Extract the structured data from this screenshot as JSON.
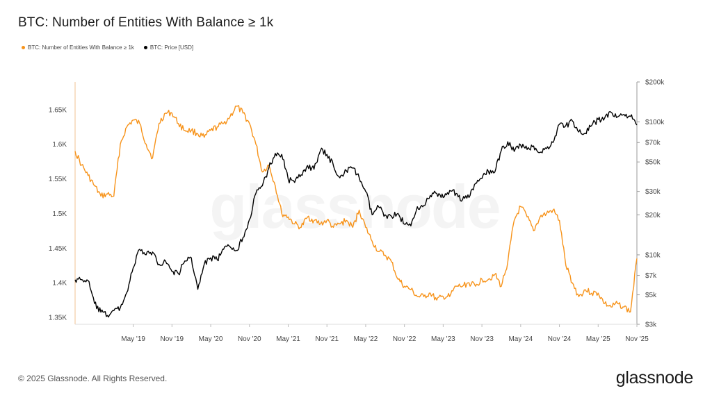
{
  "title": "BTC: Number of Entities With Balance ≥ 1k",
  "copyright": "© 2025 Glassnode. All Rights Reserved.",
  "logo_text": "glassnode",
  "watermark_text": "glassnode",
  "chart_data": {
    "type": "line",
    "title": "BTC: Number of Entities With Balance ≥ 1k",
    "x_ticks": [
      "May '19",
      "Nov '19",
      "May '20",
      "Nov '20",
      "May '21",
      "Nov '21",
      "May '22",
      "Nov '22",
      "May '23",
      "Nov '23",
      "May '24",
      "Nov '24",
      "May '25",
      "Nov '25"
    ],
    "x_range": [
      "2018-08",
      "2025-11"
    ],
    "y_left": {
      "ticks": [
        "1.35K",
        "1.4K",
        "1.45K",
        "1.5K",
        "1.55K",
        "1.6K",
        "1.65K"
      ],
      "tick_values": [
        1350,
        1400,
        1450,
        1500,
        1550,
        1600,
        1650
      ],
      "range": [
        1340,
        1690
      ]
    },
    "y_right": {
      "scale": "log",
      "ticks": [
        "$3k",
        "$5k",
        "$7k",
        "$10k",
        "$20k",
        "$30k",
        "$50k",
        "$70k",
        "$100k",
        "$200k"
      ],
      "tick_values": [
        3000,
        5000,
        7000,
        10000,
        20000,
        30000,
        50000,
        70000,
        100000,
        200000
      ],
      "range": [
        3000,
        200000
      ]
    },
    "grid": false,
    "legend_position": "top-left",
    "series": [
      {
        "name": "BTC: Number of Entities With Balance ≥ 1k",
        "axis": "left",
        "color": "#f7931a",
        "points": [
          [
            "2018-08",
            1590
          ],
          [
            "2018-09",
            1570
          ],
          [
            "2018-10",
            1555
          ],
          [
            "2018-11",
            1540
          ],
          [
            "2018-12",
            1525
          ],
          [
            "2019-01",
            1528
          ],
          [
            "2019-02",
            1525
          ],
          [
            "2019-03",
            1600
          ],
          [
            "2019-04",
            1625
          ],
          [
            "2019-05",
            1635
          ],
          [
            "2019-06",
            1630
          ],
          [
            "2019-07",
            1600
          ],
          [
            "2019-08",
            1580
          ],
          [
            "2019-09",
            1630
          ],
          [
            "2019-10",
            1645
          ],
          [
            "2019-11",
            1645
          ],
          [
            "2019-12",
            1630
          ],
          [
            "2020-01",
            1620
          ],
          [
            "2020-02",
            1620
          ],
          [
            "2020-03",
            1615
          ],
          [
            "2020-04",
            1610
          ],
          [
            "2020-05",
            1620
          ],
          [
            "2020-06",
            1625
          ],
          [
            "2020-07",
            1630
          ],
          [
            "2020-08",
            1640
          ],
          [
            "2020-09",
            1655
          ],
          [
            "2020-10",
            1645
          ],
          [
            "2020-11",
            1630
          ],
          [
            "2020-12",
            1600
          ],
          [
            "2021-01",
            1560
          ],
          [
            "2021-02",
            1570
          ],
          [
            "2021-03",
            1540
          ],
          [
            "2021-04",
            1500
          ],
          [
            "2021-05",
            1495
          ],
          [
            "2021-06",
            1485
          ],
          [
            "2021-07",
            1480
          ],
          [
            "2021-08",
            1495
          ],
          [
            "2021-09",
            1490
          ],
          [
            "2021-10",
            1485
          ],
          [
            "2021-11",
            1490
          ],
          [
            "2021-12",
            1480
          ],
          [
            "2022-01",
            1485
          ],
          [
            "2022-02",
            1490
          ],
          [
            "2022-03",
            1480
          ],
          [
            "2022-04",
            1505
          ],
          [
            "2022-05",
            1480
          ],
          [
            "2022-06",
            1460
          ],
          [
            "2022-07",
            1445
          ],
          [
            "2022-08",
            1440
          ],
          [
            "2022-09",
            1430
          ],
          [
            "2022-10",
            1405
          ],
          [
            "2022-11",
            1395
          ],
          [
            "2022-12",
            1390
          ],
          [
            "2023-01",
            1380
          ],
          [
            "2023-02",
            1380
          ],
          [
            "2023-03",
            1385
          ],
          [
            "2023-04",
            1375
          ],
          [
            "2023-05",
            1380
          ],
          [
            "2023-06",
            1380
          ],
          [
            "2023-07",
            1395
          ],
          [
            "2023-08",
            1395
          ],
          [
            "2023-09",
            1400
          ],
          [
            "2023-10",
            1395
          ],
          [
            "2023-11",
            1405
          ],
          [
            "2023-12",
            1405
          ],
          [
            "2024-01",
            1412
          ],
          [
            "2024-02",
            1395
          ],
          [
            "2024-03",
            1430
          ],
          [
            "2024-04",
            1490
          ],
          [
            "2024-05",
            1510
          ],
          [
            "2024-06",
            1495
          ],
          [
            "2024-07",
            1475
          ],
          [
            "2024-08",
            1495
          ],
          [
            "2024-09",
            1500
          ],
          [
            "2024-10",
            1505
          ],
          [
            "2024-11",
            1490
          ],
          [
            "2024-12",
            1425
          ],
          [
            "2025-01",
            1400
          ],
          [
            "2025-02",
            1380
          ],
          [
            "2025-03",
            1390
          ],
          [
            "2025-04",
            1385
          ],
          [
            "2025-05",
            1385
          ],
          [
            "2025-06",
            1370
          ],
          [
            "2025-07",
            1365
          ],
          [
            "2025-08",
            1370
          ],
          [
            "2025-09",
            1365
          ],
          [
            "2025-10",
            1358
          ],
          [
            "2025-11",
            1435
          ]
        ]
      },
      {
        "name": "BTC: Price [USD]",
        "axis": "right",
        "color": "#000000",
        "points": [
          [
            "2018-08",
            6500
          ],
          [
            "2018-09",
            6500
          ],
          [
            "2018-10",
            6400
          ],
          [
            "2018-11",
            4300
          ],
          [
            "2018-12",
            3700
          ],
          [
            "2019-01",
            3500
          ],
          [
            "2019-02",
            3800
          ],
          [
            "2019-03",
            4000
          ],
          [
            "2019-04",
            5200
          ],
          [
            "2019-05",
            8000
          ],
          [
            "2019-06",
            11000
          ],
          [
            "2019-07",
            10000
          ],
          [
            "2019-08",
            10500
          ],
          [
            "2019-09",
            8500
          ],
          [
            "2019-10",
            9000
          ],
          [
            "2019-11",
            7500
          ],
          [
            "2019-12",
            7200
          ],
          [
            "2020-01",
            9000
          ],
          [
            "2020-02",
            9500
          ],
          [
            "2020-03",
            5500
          ],
          [
            "2020-04",
            8500
          ],
          [
            "2020-05",
            9500
          ],
          [
            "2020-06",
            9200
          ],
          [
            "2020-07",
            11000
          ],
          [
            "2020-08",
            11500
          ],
          [
            "2020-09",
            10800
          ],
          [
            "2020-10",
            13500
          ],
          [
            "2020-11",
            18500
          ],
          [
            "2020-12",
            29000
          ],
          [
            "2021-01",
            33000
          ],
          [
            "2021-02",
            45000
          ],
          [
            "2021-03",
            58000
          ],
          [
            "2021-04",
            57000
          ],
          [
            "2021-05",
            37000
          ],
          [
            "2021-06",
            35000
          ],
          [
            "2021-07",
            40000
          ],
          [
            "2021-08",
            47000
          ],
          [
            "2021-09",
            44000
          ],
          [
            "2021-10",
            61000
          ],
          [
            "2021-11",
            57000
          ],
          [
            "2021-12",
            47000
          ],
          [
            "2022-01",
            38000
          ],
          [
            "2022-02",
            43000
          ],
          [
            "2022-03",
            45000
          ],
          [
            "2022-04",
            38000
          ],
          [
            "2022-05",
            30000
          ],
          [
            "2022-06",
            20000
          ],
          [
            "2022-07",
            23000
          ],
          [
            "2022-08",
            20000
          ],
          [
            "2022-09",
            19500
          ],
          [
            "2022-10",
            20500
          ],
          [
            "2022-11",
            17000
          ],
          [
            "2022-12",
            16500
          ],
          [
            "2023-01",
            23000
          ],
          [
            "2023-02",
            23500
          ],
          [
            "2023-03",
            28000
          ],
          [
            "2023-04",
            29000
          ],
          [
            "2023-05",
            27000
          ],
          [
            "2023-06",
            30500
          ],
          [
            "2023-07",
            29000
          ],
          [
            "2023-08",
            26000
          ],
          [
            "2023-09",
            27000
          ],
          [
            "2023-10",
            34500
          ],
          [
            "2023-11",
            37500
          ],
          [
            "2023-12",
            42500
          ],
          [
            "2024-01",
            42000
          ],
          [
            "2024-02",
            61000
          ],
          [
            "2024-03",
            71000
          ],
          [
            "2024-04",
            60000
          ],
          [
            "2024-05",
            67000
          ],
          [
            "2024-06",
            62000
          ],
          [
            "2024-07",
            66000
          ],
          [
            "2024-08",
            59000
          ],
          [
            "2024-09",
            63000
          ],
          [
            "2024-10",
            70000
          ],
          [
            "2024-11",
            96000
          ],
          [
            "2024-12",
            94000
          ],
          [
            "2025-01",
            102000
          ],
          [
            "2025-02",
            84000
          ],
          [
            "2025-03",
            82000
          ],
          [
            "2025-04",
            94000
          ],
          [
            "2025-05",
            104000
          ],
          [
            "2025-06",
            107000
          ],
          [
            "2025-07",
            118000
          ],
          [
            "2025-08",
            109000
          ],
          [
            "2025-09",
            114000
          ],
          [
            "2025-10",
            110000
          ],
          [
            "2025-11",
            95000
          ]
        ]
      }
    ]
  }
}
